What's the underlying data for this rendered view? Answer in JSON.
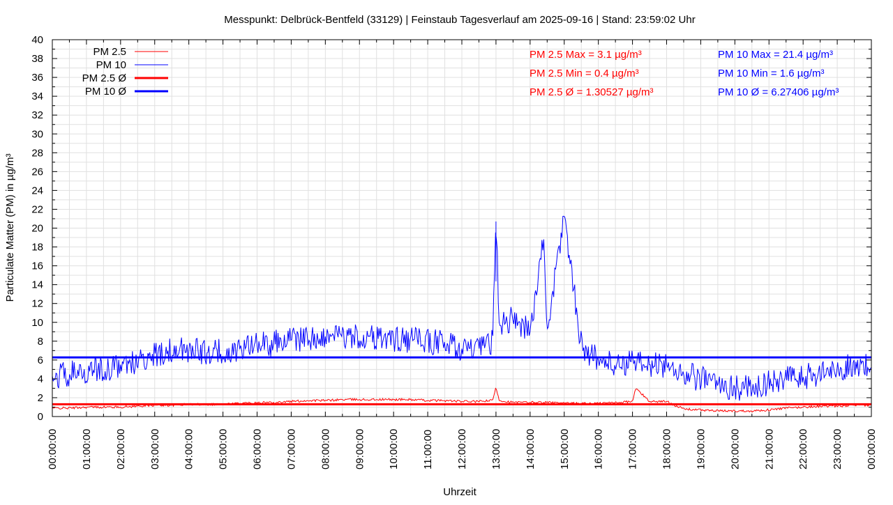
{
  "chart_data": {
    "type": "line",
    "title": "Messpunkt: Delbrück-Bentfeld (33129) | Feinstaub Tagesverlauf am 2025-09-16 | Stand: 23:59:02 Uhr",
    "xlabel": "Uhrzeit",
    "ylabel": "Particulate Matter (PM) in µg/m³",
    "xlim": [
      "00:00:00",
      "24:00:00"
    ],
    "ylim": [
      0,
      40
    ],
    "grid": true,
    "legend_position": "top-left",
    "x_tick_labels": [
      "00:00:00",
      "01:00:00",
      "02:00:00",
      "03:00:00",
      "04:00:00",
      "05:00:00",
      "06:00:00",
      "07:00:00",
      "08:00:00",
      "09:00:00",
      "10:00:00",
      "11:00:00",
      "12:00:00",
      "13:00:00",
      "14:00:00",
      "15:00:00",
      "16:00:00",
      "17:00:00",
      "18:00:00",
      "19:00:00",
      "20:00:00",
      "21:00:00",
      "22:00:00",
      "23:00:00",
      "00:00:00"
    ],
    "y_tick_labels": [
      "0",
      "2",
      "4",
      "6",
      "8",
      "10",
      "12",
      "14",
      "16",
      "18",
      "20",
      "22",
      "24",
      "26",
      "28",
      "30",
      "32",
      "34",
      "36",
      "38",
      "40"
    ],
    "colors": {
      "pm25": "#ff0000",
      "pm10": "#0000ff",
      "grid": "#e0e0e0"
    },
    "x_hours": [
      0,
      0.5,
      1,
      1.5,
      2,
      2.5,
      3,
      3.5,
      4,
      4.5,
      5,
      5.5,
      6,
      6.5,
      7,
      7.5,
      8,
      8.5,
      9,
      9.5,
      10,
      10.5,
      11,
      11.5,
      12,
      12.5,
      12.9,
      13,
      13.1,
      13.5,
      14,
      14.4,
      14.5,
      15,
      15.5,
      16,
      16.5,
      17,
      17.1,
      17.5,
      18,
      18.5,
      19,
      19.5,
      20,
      20.5,
      21,
      21.5,
      22,
      22.5,
      23,
      23.5,
      24
    ],
    "series": [
      {
        "name": "PM 2.5",
        "key": "pm25",
        "values": [
          0.9,
          0.9,
          1.0,
          1.0,
          1.0,
          1.1,
          1.2,
          1.2,
          1.3,
          1.3,
          1.3,
          1.4,
          1.5,
          1.5,
          1.6,
          1.7,
          1.7,
          1.8,
          1.8,
          1.8,
          1.8,
          1.8,
          1.7,
          1.7,
          1.6,
          1.6,
          1.7,
          3.1,
          1.7,
          1.5,
          1.5,
          1.5,
          1.5,
          1.4,
          1.4,
          1.4,
          1.5,
          1.6,
          3.0,
          1.6,
          1.6,
          0.8,
          0.7,
          0.6,
          0.6,
          0.6,
          0.7,
          0.9,
          1.0,
          1.1,
          1.1,
          1.2,
          1.2
        ]
      },
      {
        "name": "PM 10",
        "key": "pm10",
        "values": [
          4.3,
          4.5,
          4.8,
          5.0,
          5.5,
          5.8,
          6.5,
          7.0,
          7.0,
          6.8,
          6.9,
          7.2,
          7.5,
          7.8,
          8.0,
          8.3,
          8.5,
          8.5,
          8.4,
          8.3,
          8.2,
          8.1,
          8.0,
          7.8,
          7.2,
          7.0,
          8.0,
          20.7,
          9.5,
          10.5,
          9.0,
          18.8,
          9.0,
          21.4,
          7.5,
          6.0,
          5.5,
          5.8,
          5.5,
          5.5,
          5.5,
          4.5,
          4.0,
          3.5,
          3.0,
          3.2,
          3.5,
          4.0,
          4.2,
          4.5,
          5.0,
          5.5,
          5.2
        ]
      },
      {
        "name": "PM 2.5 Ø",
        "key": "pm25_avg",
        "mean": 1.30527
      },
      {
        "name": "PM 10 Ø",
        "key": "pm10_avg",
        "mean": 6.27406
      }
    ],
    "stats": {
      "pm25": [
        "PM 2.5 Max = 3.1 µg/m³",
        "PM 2.5 Min = 0.4 µg/m³",
        "PM 2.5 Ø = 1.30527 µg/m³"
      ],
      "pm10": [
        "PM 10 Max = 21.4 µg/m³",
        "PM 10 Min = 1.6 µg/m³",
        "PM 10 Ø = 6.27406 µg/m³"
      ]
    }
  }
}
